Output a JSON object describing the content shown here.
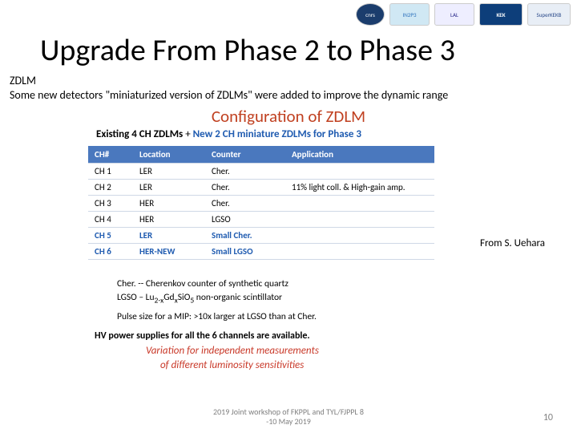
{
  "logos": {
    "cnrs": "cnrs",
    "in2p3": "IN2P3",
    "lal": "LAL",
    "kek": "KEK",
    "superkekb": "SuperKEKB"
  },
  "title": "Upgrade From Phase 2 to Phase 3",
  "sub1": "ZDLM",
  "sub2": "Some new detectors \"miniaturized version of ZDLMs\" were added to improve the dynamic range",
  "config_heading": "Configuration of ZDLM",
  "config_sub_existing": "Existing 4 CH ZDLMs",
  "config_sub_plus": "  +  ",
  "config_sub_new": "New 2 CH miniature ZDLMs for Phase 3",
  "table": {
    "headers": {
      "ch": "CH#",
      "loc": "Location",
      "counter": "Counter",
      "app": "Application"
    },
    "rows": [
      {
        "ch": "CH 1",
        "loc": "LER",
        "counter": "Cher.",
        "app": "",
        "blue": false
      },
      {
        "ch": "CH 2",
        "loc": "LER",
        "counter": "Cher.",
        "app": "11%  light coll. & High-gain amp.",
        "blue": false
      },
      {
        "ch": "CH 3",
        "loc": "HER",
        "counter": "Cher.",
        "app": "",
        "blue": false
      },
      {
        "ch": "CH 4",
        "loc": "HER",
        "counter": "LGSO",
        "app": "",
        "blue": false
      },
      {
        "ch": "CH 5",
        "loc": "LER",
        "counter": "Small Cher.",
        "app": "",
        "blue": true
      },
      {
        "ch": "CH 6",
        "loc": "HER-NEW",
        "counter": "Small LGSO",
        "app": "",
        "blue": true
      }
    ]
  },
  "legend": {
    "cher": "Cher. --  Cherenkov counter of synthetic quartz",
    "lgso_pre": "LGSO – Lu",
    "lgso_sub1": "2-x",
    "lgso_mid1": "Gd",
    "lgso_sub2": "x",
    "lgso_mid2": "Si",
    "lgso_sub3": "",
    "lgso_mid3": "O",
    "lgso_sub4": "5",
    "lgso_post": " non-organic scintillator"
  },
  "pulse": "Pulse size for a MIP:  >10x larger at LGSO than at Cher.",
  "hv": "HV power supplies  for all the 6 channels are available.",
  "var1": "Variation for independent measurements",
  "var2": "of different luminosity sensitivities",
  "attribution": "From S. Uehara",
  "footer_l1": "2019 Joint workshop of FKPPL and TYL/FJPPL 8",
  "footer_l2": "-10 May 2019",
  "pagenum": "10"
}
